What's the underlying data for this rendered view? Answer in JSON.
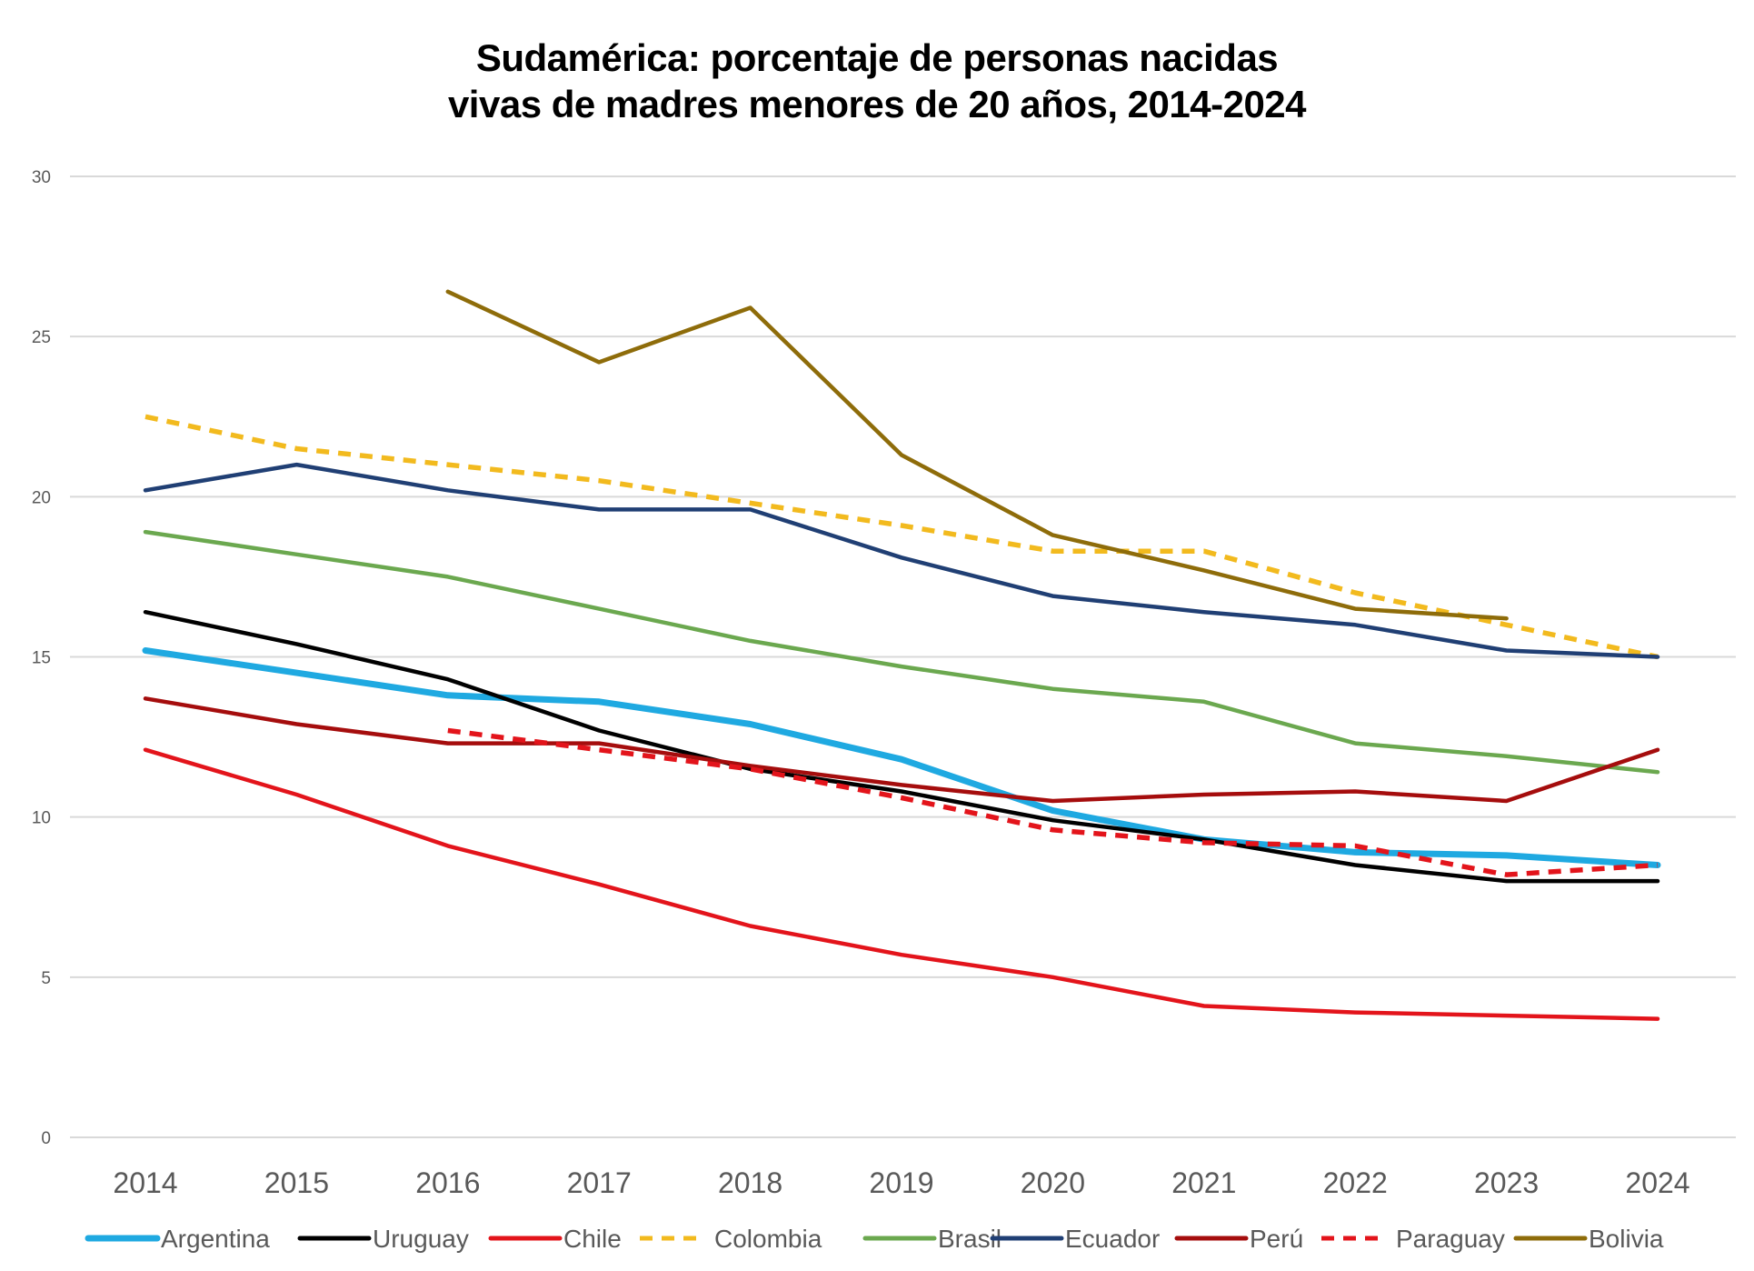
{
  "chart_data": {
    "type": "line",
    "title_lines": [
      "Sudamérica: porcentaje de personas nacidas",
      "vivas de madres menores de 20 años, 2014-2024"
    ],
    "xlabel": "",
    "ylabel": "",
    "x": [
      "2014",
      "2015",
      "2016",
      "2017",
      "2018",
      "2019",
      "2020",
      "2021",
      "2022",
      "2023",
      "2024"
    ],
    "ylim": [
      0,
      30
    ],
    "yticks": [
      "0",
      "5",
      "10",
      "15",
      "20",
      "25",
      "30"
    ],
    "ytick_values": [
      0,
      5,
      10,
      15,
      20,
      25,
      30
    ],
    "grid": true,
    "legend_position": "bottom",
    "series": [
      {
        "name": "Argentina",
        "color": "#1FA9E1",
        "dash": "solid",
        "weight": "thick",
        "values": [
          15.2,
          14.5,
          13.8,
          13.6,
          12.9,
          11.8,
          10.2,
          9.3,
          8.9,
          8.8,
          8.5
        ]
      },
      {
        "name": "Uruguay",
        "color": "#000000",
        "dash": "solid",
        "weight": "normal",
        "values": [
          16.4,
          15.4,
          14.3,
          12.7,
          11.5,
          10.8,
          9.9,
          9.3,
          8.5,
          8.0,
          8.0
        ]
      },
      {
        "name": "Chile",
        "color": "#E3141B",
        "dash": "solid",
        "weight": "normal",
        "values": [
          12.1,
          10.7,
          9.1,
          7.9,
          6.6,
          5.7,
          5.0,
          4.1,
          3.9,
          3.8,
          3.7
        ]
      },
      {
        "name": "Colombia",
        "color": "#F2BA1E",
        "dash": "dashed",
        "weight": "normal",
        "values": [
          22.5,
          21.5,
          21.0,
          20.5,
          19.8,
          19.1,
          18.3,
          18.3,
          17.0,
          16.0,
          15.0
        ]
      },
      {
        "name": "Brasil",
        "color": "#6BA84F",
        "dash": "solid",
        "weight": "normal",
        "values": [
          18.9,
          18.2,
          17.5,
          16.5,
          15.5,
          14.7,
          14.0,
          13.6,
          12.3,
          11.9,
          11.4
        ]
      },
      {
        "name": "Ecuador",
        "color": "#203F74",
        "dash": "solid",
        "weight": "normal",
        "values": [
          20.2,
          21.0,
          20.2,
          19.6,
          19.6,
          18.1,
          16.9,
          16.4,
          16.0,
          15.2,
          15.0
        ]
      },
      {
        "name": "Perú",
        "color": "#A50D0D",
        "dash": "solid",
        "weight": "normal",
        "values": [
          13.7,
          12.9,
          12.3,
          12.3,
          11.6,
          11.0,
          10.5,
          10.7,
          10.8,
          10.5,
          12.1
        ]
      },
      {
        "name": "Paraguay",
        "color": "#E3141B",
        "dash": "dashed",
        "weight": "normal",
        "values": [
          null,
          null,
          12.7,
          12.1,
          11.5,
          10.6,
          9.6,
          9.2,
          9.1,
          8.2,
          8.5
        ]
      },
      {
        "name": "Bolivia",
        "color": "#8E6C0A",
        "dash": "solid",
        "weight": "normal",
        "values": [
          null,
          null,
          26.4,
          24.2,
          25.9,
          21.3,
          18.8,
          17.7,
          16.5,
          16.2,
          null
        ]
      }
    ]
  }
}
